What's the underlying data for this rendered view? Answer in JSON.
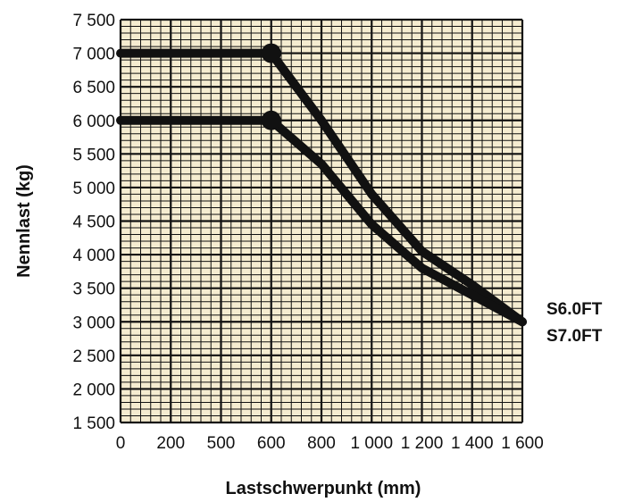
{
  "chart_data": {
    "type": "line",
    "title": "",
    "xlabel": "Lastschwerpunkt (mm)",
    "ylabel": "Nennlast (kg)",
    "x_tick_labels": [
      "0",
      "200",
      "500",
      "600",
      "800",
      "1 000",
      "1 200",
      "1 400",
      "1 600"
    ],
    "y_tick_labels": [
      "1 500",
      "2 000",
      "2 500",
      "3 000",
      "3 500",
      "4 000",
      "4 500",
      "5 000",
      "5 500",
      "6 000",
      "6 500",
      "7 000",
      "7 500"
    ],
    "y_tick_values": [
      1500,
      2000,
      2500,
      3000,
      3500,
      4000,
      4500,
      5000,
      5500,
      6000,
      6500,
      7000,
      7500
    ],
    "ylim": [
      1500,
      7500
    ],
    "grid": true,
    "background_color": "#f5ecd0",
    "line_color": "#111111",
    "series_labels": [
      "S6.0FT",
      "S7.0FT"
    ],
    "series": [
      {
        "name": "S7.0FT",
        "points": [
          [
            0,
            7000
          ],
          [
            600,
            7000
          ],
          [
            800,
            6000
          ],
          [
            1000,
            4900
          ],
          [
            1200,
            4050
          ],
          [
            1400,
            3550
          ],
          [
            1600,
            3000
          ]
        ],
        "marker_x": 600
      },
      {
        "name": "S6.0FT",
        "points": [
          [
            0,
            6000
          ],
          [
            600,
            6000
          ],
          [
            800,
            5350
          ],
          [
            1000,
            4450
          ],
          [
            1200,
            3800
          ],
          [
            1400,
            3400
          ],
          [
            1600,
            3000
          ]
        ],
        "marker_x": 600
      }
    ]
  }
}
